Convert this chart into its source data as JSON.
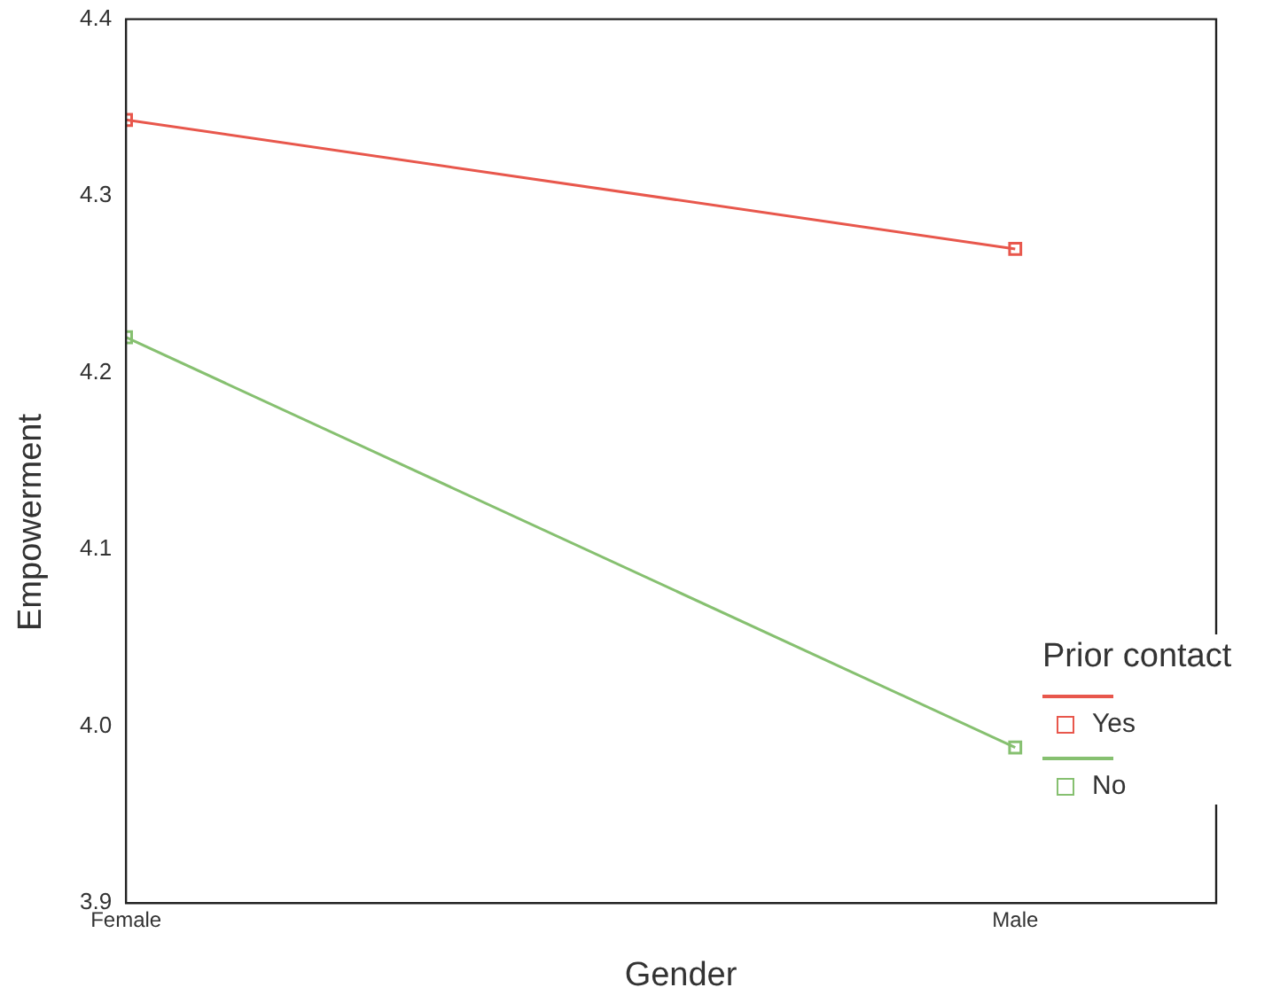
{
  "chart_data": {
    "type": "line",
    "xlabel": "Gender",
    "ylabel": "Empowerment",
    "legend_title": "Prior contact",
    "categories": [
      "Female",
      "Male"
    ],
    "series": [
      {
        "name": "Yes",
        "color": "#e8574c",
        "values": [
          4.343,
          4.27
        ]
      },
      {
        "name": "No",
        "color": "#86c070",
        "values": [
          4.22,
          3.988
        ]
      }
    ],
    "ylim": [
      3.9,
      4.4
    ],
    "yticks": [
      {
        "value": 3.9,
        "label": "3.9"
      },
      {
        "value": 4.0,
        "label": "4.0"
      },
      {
        "value": 4.1,
        "label": "4.1"
      },
      {
        "value": 4.2,
        "label": "4.2"
      },
      {
        "value": 4.3,
        "label": "4.3"
      },
      {
        "value": 4.4,
        "label": "4.4"
      }
    ],
    "grid": false,
    "legend": "right",
    "marker": "square",
    "line_style": "solid"
  }
}
